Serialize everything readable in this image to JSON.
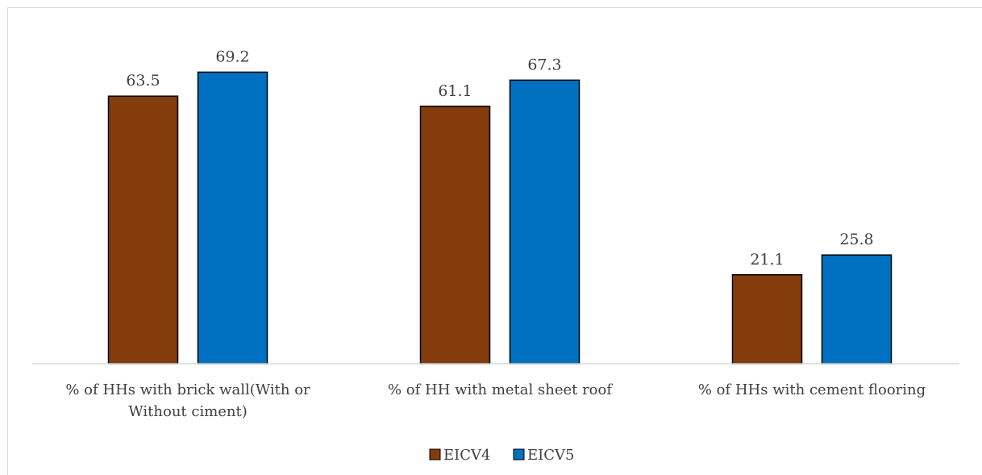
{
  "chart_data": {
    "type": "bar",
    "title": "",
    "xlabel": "",
    "ylabel": "",
    "ylim": [
      0,
      80
    ],
    "grid": false,
    "legend_position": "bottom",
    "categories": [
      [
        "% of HHs with brick wall(With or",
        "Without ciment)"
      ],
      [
        "% of HH with metal sheet roof"
      ],
      [
        "% of HHs with cement flooring"
      ]
    ],
    "series": [
      {
        "name": "EICV4",
        "color": "#843c0c",
        "values": [
          63.5,
          61.1,
          21.1
        ],
        "labels": [
          "63.5",
          "61.1",
          "21.1"
        ]
      },
      {
        "name": "EICV5",
        "color": "#0070c0",
        "values": [
          69.2,
          67.3,
          25.8
        ],
        "labels": [
          "69.2",
          "67.3",
          "25.8"
        ]
      }
    ]
  }
}
